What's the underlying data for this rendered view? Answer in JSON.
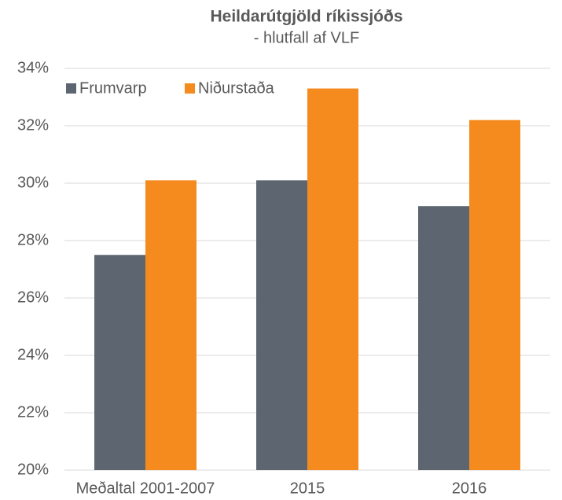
{
  "chart_data": {
    "type": "bar",
    "title": "Heildarútgjöld ríkissjóðs",
    "subtitle": "- hlutfall af VLF",
    "categories": [
      "Meðaltal 2001-2007",
      "2015",
      "2016"
    ],
    "series": [
      {
        "name": "Frumvarp",
        "color": "#5d6670",
        "values": [
          27.5,
          30.1,
          29.2
        ]
      },
      {
        "name": "Niðurstaða",
        "color": "#f58b1f",
        "values": [
          30.1,
          33.3,
          32.2
        ]
      }
    ],
    "ylim": [
      20,
      34
    ],
    "yticks": [
      {
        "value": 20,
        "label": "20%"
      },
      {
        "value": 22,
        "label": "22%"
      },
      {
        "value": 24,
        "label": "24%"
      },
      {
        "value": 26,
        "label": "26%"
      },
      {
        "value": 28,
        "label": "28%"
      },
      {
        "value": 30,
        "label": "30%"
      },
      {
        "value": 32,
        "label": "32%"
      },
      {
        "value": 34,
        "label": "34%"
      }
    ],
    "grid": true,
    "legend": "top-left"
  }
}
